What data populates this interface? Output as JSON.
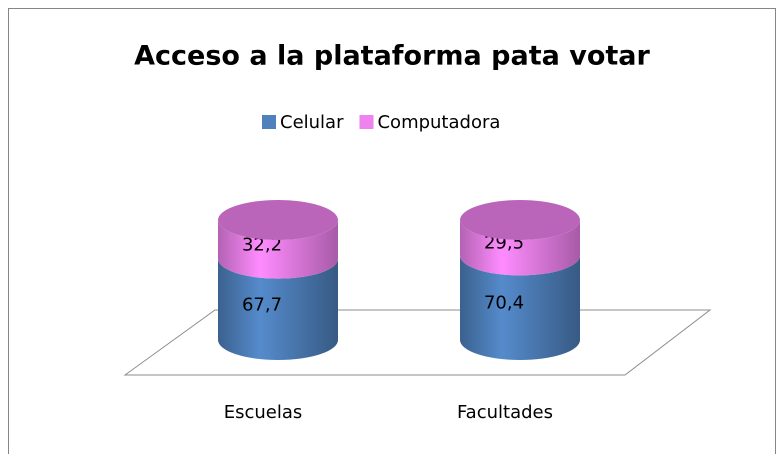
{
  "chart_data": {
    "type": "bar",
    "stacked": true,
    "style": "3d-cylinder",
    "title": "Acceso a la plataforma pata votar",
    "categories": [
      "Escuelas",
      "Facultades"
    ],
    "series": [
      {
        "name": "Celular",
        "color": "#4f81bd",
        "values": [
          67.7,
          70.4
        ],
        "value_labels": [
          "67,7",
          "70,4"
        ]
      },
      {
        "name": "Computadora",
        "color": "#ee82ee",
        "values": [
          32.2,
          29.5
        ],
        "value_labels": [
          "32,2",
          "29,5"
        ]
      }
    ],
    "legend": "top"
  }
}
